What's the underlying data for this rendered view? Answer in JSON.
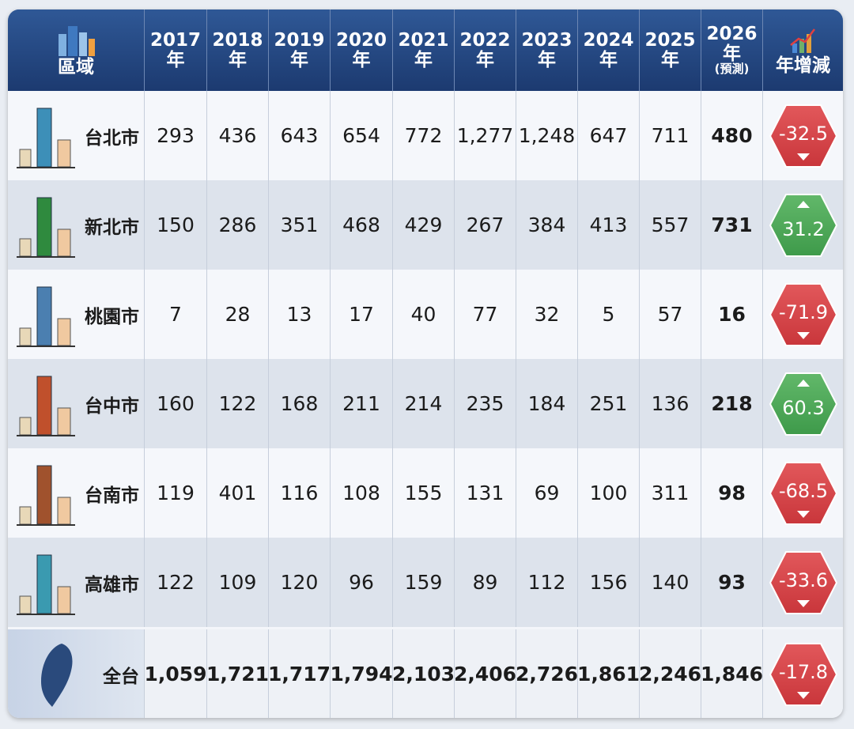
{
  "header": {
    "region": "區域",
    "years": [
      {
        "year": "2017",
        "suffix": "年"
      },
      {
        "year": "2018",
        "suffix": "年"
      },
      {
        "year": "2019",
        "suffix": "年"
      },
      {
        "year": "2020",
        "suffix": "年"
      },
      {
        "year": "2021",
        "suffix": "年"
      },
      {
        "year": "2022",
        "suffix": "年"
      },
      {
        "year": "2023",
        "suffix": "年"
      },
      {
        "year": "2024",
        "suffix": "年"
      },
      {
        "year": "2025",
        "suffix": "年"
      },
      {
        "year": "2026",
        "suffix": "年",
        "note": "(預測)"
      }
    ],
    "change": "年增減"
  },
  "rows": [
    {
      "name": "台北市",
      "values": [
        "293",
        "436",
        "643",
        "654",
        "772",
        "1,277",
        "1,248",
        "647",
        "711",
        "480"
      ],
      "change": "-32.5"
    },
    {
      "name": "新北市",
      "values": [
        "150",
        "286",
        "351",
        "468",
        "429",
        "267",
        "384",
        "413",
        "557",
        "731"
      ],
      "change": "31.2"
    },
    {
      "name": "桃園市",
      "values": [
        "7",
        "28",
        "13",
        "17",
        "40",
        "77",
        "32",
        "5",
        "57",
        "16"
      ],
      "change": "-71.9"
    },
    {
      "name": "台中市",
      "values": [
        "160",
        "122",
        "168",
        "211",
        "214",
        "235",
        "184",
        "251",
        "136",
        "218"
      ],
      "change": "60.3"
    },
    {
      "name": "台南市",
      "values": [
        "119",
        "401",
        "116",
        "108",
        "155",
        "131",
        "69",
        "100",
        "311",
        "98"
      ],
      "change": "-68.5"
    },
    {
      "name": "高雄市",
      "values": [
        "122",
        "109",
        "120",
        "96",
        "159",
        "89",
        "112",
        "156",
        "140",
        "93"
      ],
      "change": "-33.6"
    }
  ],
  "total": {
    "name": "全台",
    "values": [
      "1,059",
      "1,721",
      "1,717",
      "1,794",
      "2,103",
      "2,406",
      "2,726",
      "1,861",
      "2,246",
      "1,846"
    ],
    "change": "-17.8"
  }
}
